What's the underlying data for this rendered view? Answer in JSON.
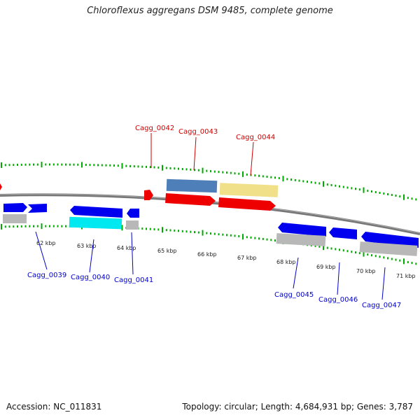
{
  "title": "Chloroflexus aggregans DSM 9485, complete genome",
  "footer": {
    "accession": "Accession: NC_011831",
    "summary": "Topology: circular; Length: 4,684,931 bp; Genes: 3,787"
  },
  "colors": {
    "backbone": "#777777",
    "tick": "#00aa00",
    "label_top": "#cc0000",
    "label_bottom": "#0000cc",
    "gene_blue": "#0000ee",
    "gene_red": "#ee0000",
    "gene_steel": "#4f7fb8",
    "gene_khaki": "#f0e08a",
    "gene_cyan": "#00e8f0",
    "gene_grey": "#b8b8b8"
  },
  "kbp_labels": [
    "62 kbp",
    "63 kbp",
    "64 kbp",
    "65 kbp",
    "66 kbp",
    "67 kbp",
    "68 kbp",
    "69 kbp",
    "70 kbp",
    "71 kbp"
  ],
  "genes_top": [
    {
      "name": "Cagg_0042"
    },
    {
      "name": "Cagg_0043"
    },
    {
      "name": "Cagg_0044"
    }
  ],
  "genes_bottom": [
    {
      "name": "Cagg_0039"
    },
    {
      "name": "Cagg_0040"
    },
    {
      "name": "Cagg_0041"
    },
    {
      "name": "Cagg_0045"
    },
    {
      "name": "Cagg_0046"
    },
    {
      "name": "Cagg_0047"
    }
  ]
}
